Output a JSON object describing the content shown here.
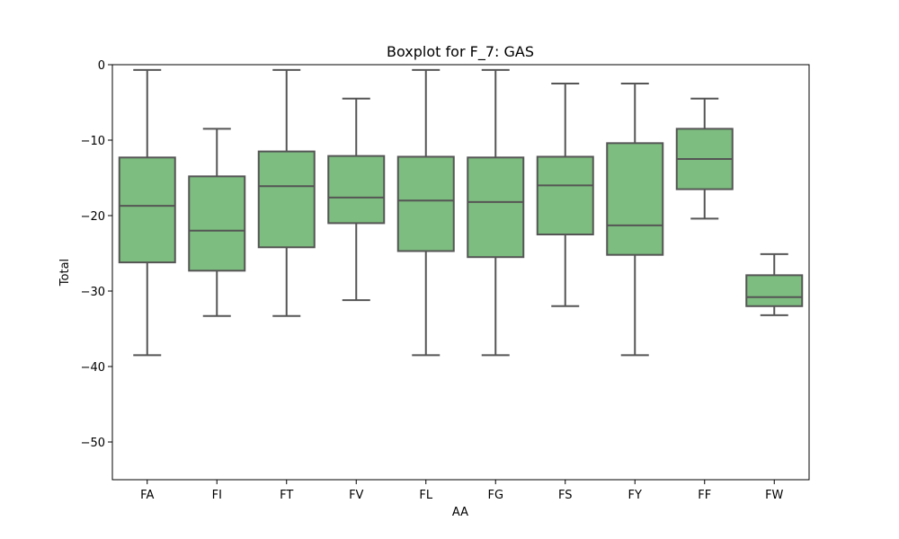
{
  "chart_data": {
    "type": "boxplot",
    "title": "Boxplot for F_7: GAS",
    "xlabel": "AA",
    "ylabel": "Total",
    "ylim": [
      -55,
      0
    ],
    "yticks": [
      0,
      -10,
      -20,
      -30,
      -40,
      -50
    ],
    "ytick_labels": [
      "0",
      "−10",
      "−20",
      "−30",
      "−40",
      "−50"
    ],
    "grid": false,
    "box_color": "#7dbd7f",
    "line_color": "#555555",
    "categories": [
      "FA",
      "FI",
      "FT",
      "FV",
      "FL",
      "FG",
      "FS",
      "FY",
      "FF",
      "FW"
    ],
    "boxes": [
      {
        "category": "FA",
        "whisker_low": -38.5,
        "q1": -26.2,
        "median": -18.7,
        "q3": -12.3,
        "whisker_high": -0.7
      },
      {
        "category": "FI",
        "whisker_low": -33.3,
        "q1": -27.3,
        "median": -22.0,
        "q3": -14.8,
        "whisker_high": -8.5
      },
      {
        "category": "FT",
        "whisker_low": -33.3,
        "q1": -24.2,
        "median": -16.1,
        "q3": -11.5,
        "whisker_high": -0.7
      },
      {
        "category": "FV",
        "whisker_low": -31.2,
        "q1": -21.0,
        "median": -17.6,
        "q3": -12.1,
        "whisker_high": -4.5
      },
      {
        "category": "FL",
        "whisker_low": -38.5,
        "q1": -24.7,
        "median": -18.0,
        "q3": -12.2,
        "whisker_high": -0.7
      },
      {
        "category": "FG",
        "whisker_low": -38.5,
        "q1": -25.5,
        "median": -18.2,
        "q3": -12.3,
        "whisker_high": -0.7
      },
      {
        "category": "FS",
        "whisker_low": -32.0,
        "q1": -22.5,
        "median": -16.0,
        "q3": -12.2,
        "whisker_high": -2.5
      },
      {
        "category": "FY",
        "whisker_low": -38.5,
        "q1": -25.2,
        "median": -21.3,
        "q3": -10.4,
        "whisker_high": -2.5
      },
      {
        "category": "FF",
        "whisker_low": -20.4,
        "q1": -16.5,
        "median": -12.5,
        "q3": -8.5,
        "whisker_high": -4.5
      },
      {
        "category": "FW",
        "whisker_low": -33.2,
        "q1": -32.0,
        "median": -30.8,
        "q3": -27.9,
        "whisker_high": -25.1
      }
    ]
  }
}
